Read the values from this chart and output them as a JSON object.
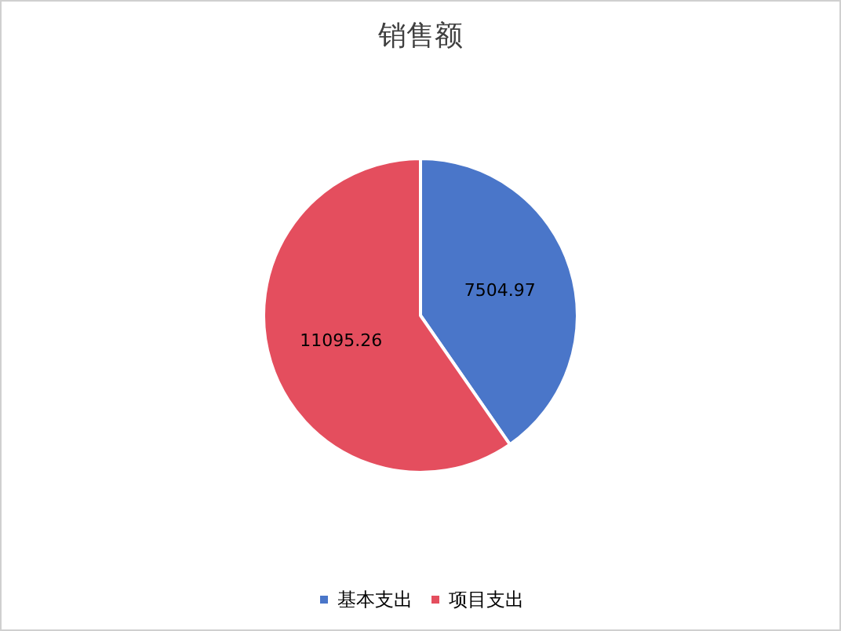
{
  "chart_data": {
    "type": "pie",
    "title": "销售额",
    "categories": [
      "基本支出",
      "项目支出"
    ],
    "values": [
      7504.97,
      11095.26
    ],
    "colors": [
      "#4a76c9",
      "#e44e5e"
    ],
    "data_labels": true,
    "legend": "bottom"
  }
}
